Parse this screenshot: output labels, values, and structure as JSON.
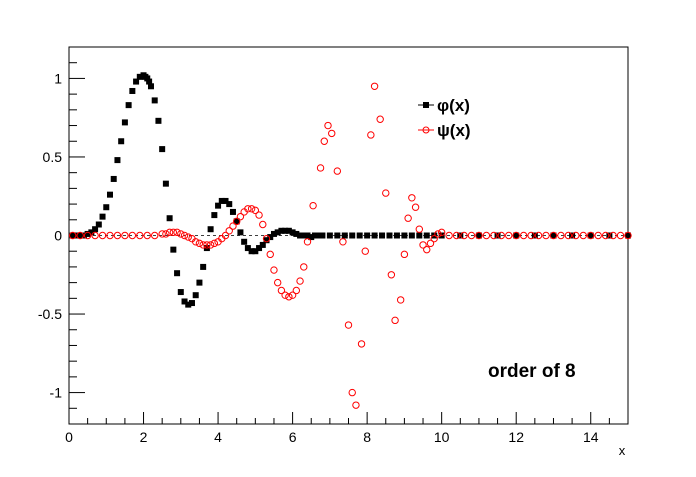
{
  "chart_data": {
    "type": "scatter",
    "title": "",
    "xlabel": "x",
    "ylabel": "",
    "xlim": [
      0,
      15
    ],
    "ylim": [
      -1.2,
      1.2
    ],
    "x_ticks": [
      0,
      2,
      4,
      6,
      8,
      10,
      12,
      14
    ],
    "x_tick_labels": [
      "0",
      "2",
      "4",
      "6",
      "8",
      "10",
      "12",
      "14"
    ],
    "y_ticks": [
      -1,
      -0.5,
      0,
      0.5,
      1
    ],
    "y_tick_labels": [
      "-1",
      "-0.5",
      "0",
      "0.5",
      "1"
    ],
    "grid": false,
    "legend_position": "top-right",
    "annotation": "order of 8",
    "series": [
      {
        "name": "φ(x)",
        "marker": "filled-square",
        "color": "#000000",
        "x": [
          0.1,
          0.2,
          0.3,
          0.4,
          0.5,
          0.6,
          0.7,
          0.8,
          0.9,
          1.0,
          1.1,
          1.2,
          1.3,
          1.4,
          1.5,
          1.6,
          1.7,
          1.8,
          1.9,
          2.0,
          2.05,
          2.1,
          2.15,
          2.2,
          2.3,
          2.4,
          2.5,
          2.6,
          2.7,
          2.8,
          2.9,
          3.0,
          3.1,
          3.2,
          3.3,
          3.4,
          3.5,
          3.6,
          3.7,
          3.8,
          3.9,
          4.0,
          4.1,
          4.2,
          4.3,
          4.4,
          4.5,
          4.6,
          4.7,
          4.8,
          4.9,
          5.0,
          5.1,
          5.2,
          5.3,
          5.4,
          5.5,
          5.6,
          5.7,
          5.8,
          5.9,
          6.0,
          6.1,
          6.2,
          6.3,
          6.4,
          6.5,
          6.6,
          6.7,
          6.8,
          7.0,
          7.2,
          7.4,
          7.6,
          7.8,
          8.0,
          8.2,
          8.4,
          8.6,
          8.8,
          9.0,
          9.2,
          9.4,
          9.6,
          9.8,
          10.0,
          10.5,
          11.0,
          11.5,
          12.0,
          12.5,
          13.0,
          13.5,
          14.0,
          14.5,
          15.0
        ],
        "y": [
          0.0,
          0.0,
          0.0,
          0.0,
          0.01,
          0.02,
          0.04,
          0.07,
          0.12,
          0.18,
          0.26,
          0.36,
          0.48,
          0.6,
          0.72,
          0.83,
          0.92,
          0.98,
          1.01,
          1.02,
          1.01,
          1.0,
          0.98,
          0.95,
          0.86,
          0.73,
          0.55,
          0.33,
          0.11,
          -0.09,
          -0.24,
          -0.36,
          -0.42,
          -0.44,
          -0.43,
          -0.38,
          -0.3,
          -0.2,
          -0.08,
          0.04,
          0.13,
          0.19,
          0.22,
          0.22,
          0.2,
          0.15,
          0.09,
          0.02,
          -0.04,
          -0.08,
          -0.1,
          -0.1,
          -0.08,
          -0.06,
          -0.03,
          -0.01,
          0.01,
          0.02,
          0.03,
          0.03,
          0.03,
          0.02,
          0.01,
          0.0,
          0.0,
          0.0,
          -0.01,
          0.0,
          0.0,
          0.0,
          0.0,
          0.0,
          0.0,
          0.0,
          0.0,
          0.0,
          0.0,
          0.0,
          0.0,
          0.0,
          0.0,
          0.0,
          0.0,
          0.0,
          0.0,
          0.0,
          0.0,
          0.0,
          0.0,
          0.0,
          0.0,
          0.0,
          0.0,
          0.0,
          0.0,
          0.0
        ]
      },
      {
        "name": "ψ(x)",
        "marker": "open-circle",
        "color": "#ff0000",
        "x": [
          0.1,
          0.3,
          0.5,
          0.7,
          0.9,
          1.1,
          1.3,
          1.5,
          1.7,
          1.9,
          2.1,
          2.3,
          2.5,
          2.6,
          2.7,
          2.8,
          2.9,
          3.0,
          3.1,
          3.2,
          3.3,
          3.4,
          3.5,
          3.6,
          3.7,
          3.8,
          3.9,
          4.0,
          4.1,
          4.2,
          4.3,
          4.4,
          4.5,
          4.6,
          4.7,
          4.8,
          4.9,
          5.0,
          5.1,
          5.2,
          5.3,
          5.4,
          5.5,
          5.6,
          5.7,
          5.8,
          5.9,
          6.0,
          6.1,
          6.2,
          6.3,
          6.4,
          6.55,
          6.75,
          6.85,
          6.95,
          7.05,
          7.2,
          7.35,
          7.5,
          7.6,
          7.7,
          7.85,
          7.95,
          8.1,
          8.2,
          8.35,
          8.5,
          8.65,
          8.75,
          8.9,
          9.0,
          9.1,
          9.2,
          9.3,
          9.4,
          9.5,
          9.6,
          9.7,
          9.8,
          9.9,
          10.0,
          10.2,
          10.4,
          10.6,
          10.8,
          11.0,
          11.2,
          11.4,
          11.6,
          11.8,
          12.0,
          12.2,
          12.4,
          12.6,
          12.8,
          13.0,
          13.2,
          13.4,
          13.6,
          13.8,
          14.0,
          14.2,
          14.4,
          14.6,
          14.8,
          15.0
        ],
        "y": [
          0,
          0,
          0,
          0,
          0,
          0,
          0,
          0,
          0,
          0,
          0.0,
          0.0,
          0.01,
          0.01,
          0.02,
          0.02,
          0.02,
          0.01,
          0.0,
          -0.01,
          -0.02,
          -0.04,
          -0.05,
          -0.06,
          -0.06,
          -0.06,
          -0.05,
          -0.04,
          -0.02,
          0.0,
          0.03,
          0.06,
          0.09,
          0.12,
          0.15,
          0.17,
          0.17,
          0.16,
          0.13,
          0.07,
          -0.02,
          -0.12,
          -0.22,
          -0.3,
          -0.35,
          -0.38,
          -0.39,
          -0.38,
          -0.35,
          -0.29,
          -0.2,
          -0.04,
          0.19,
          0.43,
          0.6,
          0.7,
          0.65,
          0.41,
          -0.04,
          -0.57,
          -1.0,
          -1.08,
          -0.69,
          -0.1,
          0.64,
          0.95,
          0.74,
          0.27,
          -0.25,
          -0.54,
          -0.41,
          -0.12,
          0.11,
          0.24,
          0.18,
          0.04,
          -0.06,
          -0.09,
          -0.05,
          -0.02,
          0.01,
          0.02,
          0.0,
          0.0,
          0.0,
          0.0,
          0.0,
          0.0,
          0.0,
          0.0,
          0.0,
          0.0,
          0.0,
          0.0,
          0.0,
          0.0,
          0.0,
          0.0,
          0.0,
          0.0,
          0.0,
          0.0,
          0.0,
          0.0,
          0.0,
          0.0,
          0.0
        ]
      }
    ]
  }
}
